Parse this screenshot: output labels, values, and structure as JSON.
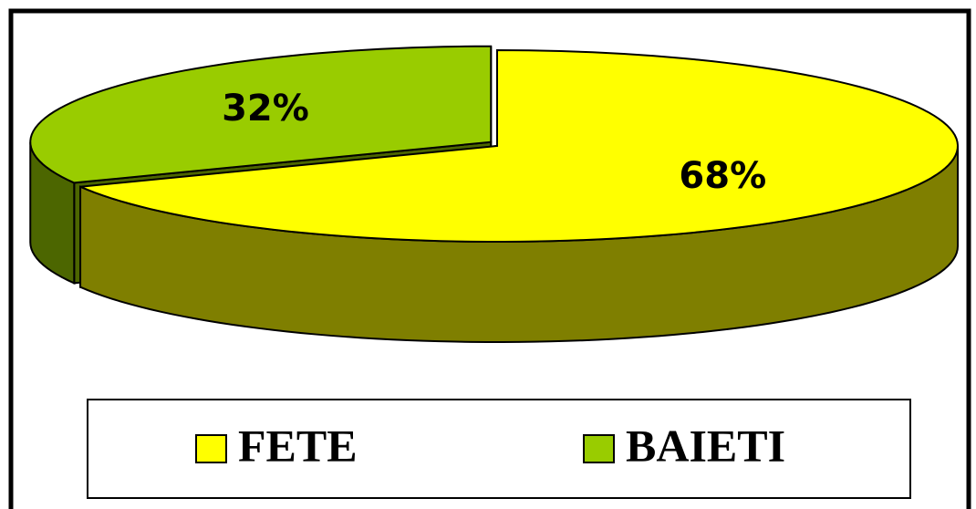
{
  "chart_data": {
    "type": "pie",
    "categories": [
      "FETE",
      "BAIETI"
    ],
    "values": [
      68,
      32
    ],
    "value_labels": [
      "68%",
      "32%"
    ],
    "colors": [
      "#ffff00",
      "#99cc00"
    ],
    "legend": "bottom"
  }
}
